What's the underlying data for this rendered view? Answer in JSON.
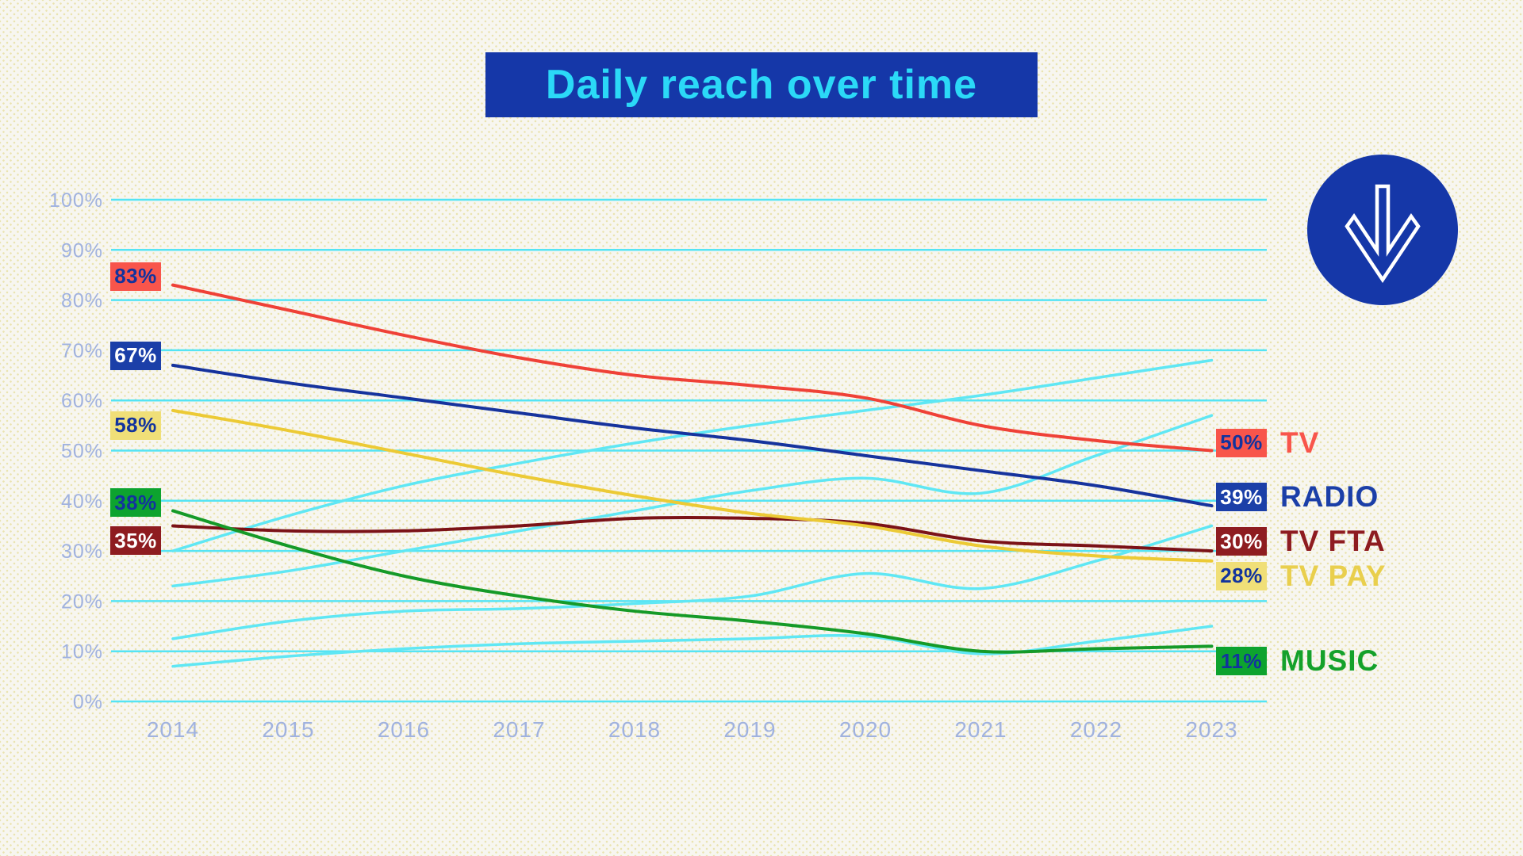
{
  "title": "Daily reach over time",
  "arrow_button": {
    "icon": "arrow-down-icon"
  },
  "colors": {
    "page_background": "#f7f6f0",
    "title_background": "#1537a8",
    "title_text": "#2bd9f7",
    "gridline": "#55e4f4",
    "axis_label": "#a0b2df",
    "background_line": "#5fe7f4",
    "dark_blue": "#12339e",
    "arrow_circle": "#1537a8",
    "arrow_glyph": "#ffffff"
  },
  "chart_data": {
    "type": "line",
    "title": "Daily reach over time",
    "x": [
      2014,
      2015,
      2016,
      2017,
      2018,
      2019,
      2020,
      2021,
      2022,
      2023
    ],
    "x_tick_labels": [
      "2014",
      "2015",
      "2016",
      "2017",
      "2018",
      "2019",
      "2020",
      "2021",
      "2022",
      "2023"
    ],
    "y_tick_labels": [
      "0%",
      "10%",
      "20%",
      "30%",
      "40%",
      "50%",
      "60%",
      "70%",
      "80%",
      "90%",
      "100%"
    ],
    "ylim": [
      0,
      100
    ],
    "grid": true,
    "unit": "%",
    "legend_position": "right",
    "series": [
      {
        "name": "TV",
        "line_color": "#ef4137",
        "badge_bg": "#f8554b",
        "badge_text_color": "#12339e",
        "name_color": "#f8554b",
        "start_label": "83%",
        "end_label": "50%",
        "values": [
          83,
          78,
          73,
          68.5,
          65,
          63,
          60.5,
          55,
          52,
          50
        ]
      },
      {
        "name": "RADIO",
        "line_color": "#16339d",
        "badge_bg": "#1b3fa8",
        "badge_text_color": "#ffffff",
        "name_color": "#1b3fa8",
        "start_label": "67%",
        "end_label": "39%",
        "values": [
          67,
          63.5,
          60.5,
          57.5,
          54.5,
          52,
          49,
          46,
          43,
          39
        ]
      },
      {
        "name": "TV FTA",
        "line_color": "#7b1217",
        "badge_bg": "#8e1c20",
        "badge_text_color": "#ffffff",
        "name_color": "#8e1c20",
        "start_label": "35%",
        "end_label": "30%",
        "values": [
          35,
          34,
          34,
          35,
          36.5,
          36.5,
          35.5,
          32,
          31,
          30
        ]
      },
      {
        "name": "TV PAY",
        "line_color": "#ecca35",
        "badge_bg": "#f0df78",
        "badge_text_color": "#12339e",
        "name_color": "#e9cf4d",
        "start_label": "58%",
        "end_label": "28%",
        "values": [
          58,
          54,
          49.5,
          45,
          41,
          37.5,
          35,
          31,
          29,
          28
        ]
      },
      {
        "name": "MUSIC",
        "line_color": "#159a28",
        "badge_bg": "#0da32f",
        "badge_text_color": "#12339e",
        "name_color": "#14a12b",
        "start_label": "38%",
        "end_label": "11%",
        "values": [
          38,
          31,
          25,
          21,
          18,
          16,
          13.5,
          10,
          10.5,
          11
        ]
      }
    ],
    "background_series": [
      {
        "name": "unlabeled-1",
        "values": [
          30,
          37,
          43,
          47.5,
          51.5,
          55,
          58,
          61,
          64.5,
          68
        ]
      },
      {
        "name": "unlabeled-2",
        "values": [
          23,
          26,
          30,
          34,
          38,
          42,
          44.5,
          41.5,
          49,
          57
        ]
      },
      {
        "name": "unlabeled-3",
        "values": [
          12.5,
          16,
          18,
          18.5,
          19.5,
          21,
          25.5,
          22.5,
          28,
          35
        ]
      },
      {
        "name": "unlabeled-4",
        "values": [
          7,
          9,
          10.5,
          11.5,
          12,
          12.5,
          13,
          9.5,
          12,
          15
        ]
      }
    ]
  }
}
